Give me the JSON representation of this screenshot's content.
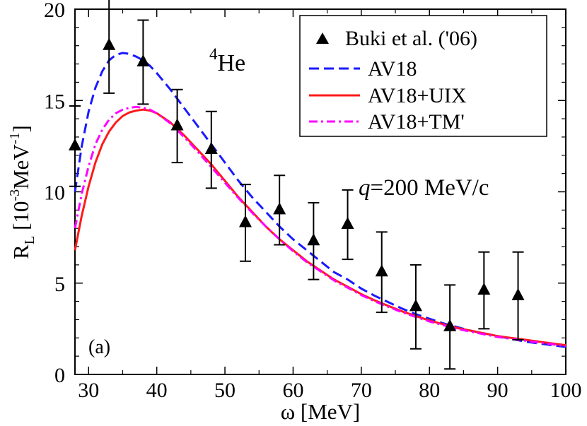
{
  "chart_data": {
    "type": "line",
    "title": "",
    "xlabel": "ω [MeV]",
    "ylabel": "R_L [10^-3 MeV^-1]",
    "ylabel_parts": {
      "main": "R",
      "main_sub": "L",
      "open": "[10",
      "exp1": "-3",
      "mid": "MeV",
      "exp2": "-1",
      "close": "]"
    },
    "xlim": [
      28,
      100
    ],
    "ylim": [
      0,
      20
    ],
    "x_ticks": [
      30,
      40,
      50,
      60,
      70,
      80,
      90,
      100
    ],
    "y_ticks": [
      0,
      5,
      10,
      15,
      20
    ],
    "grid": false,
    "legend_position": "top-right",
    "annotations": {
      "nucleus": {
        "mass": "4",
        "symbol": "He"
      },
      "momentum": {
        "var": "q",
        "rest": "=200 MeV/c"
      },
      "panel": "(a)"
    },
    "data_series": {
      "name": "Buki et al. ('06)",
      "x": [
        28,
        33,
        38,
        43,
        48,
        53,
        58,
        63,
        68,
        73,
        78,
        83,
        88,
        93
      ],
      "y": [
        12.5,
        18.0,
        17.1,
        13.6,
        12.3,
        8.3,
        9.0,
        7.3,
        8.2,
        5.6,
        3.7,
        2.6,
        4.6,
        4.3
      ],
      "err": [
        2.2,
        2.6,
        2.3,
        2.0,
        2.1,
        2.1,
        1.9,
        2.1,
        1.9,
        2.2,
        2.3,
        2.3,
        2.1,
        2.4
      ],
      "color": "#000000"
    },
    "series": [
      {
        "name": "AV18",
        "style": "dashed",
        "color": "#1a1aff",
        "x": [
          28,
          29,
          30,
          31,
          32,
          33,
          34,
          35,
          36,
          37,
          38,
          39,
          40,
          42,
          44,
          46,
          48,
          50,
          52,
          54,
          56,
          58,
          60,
          62,
          64,
          66,
          68,
          70,
          72,
          74,
          76,
          78,
          80,
          82,
          84,
          86,
          88,
          90,
          92,
          94,
          96,
          98,
          100
        ],
        "y": [
          10.0,
          12.5,
          14.4,
          15.7,
          16.6,
          17.2,
          17.5,
          17.6,
          17.55,
          17.4,
          17.2,
          16.9,
          16.5,
          15.6,
          14.6,
          13.6,
          12.6,
          11.6,
          10.6,
          9.7,
          8.9,
          8.1,
          7.4,
          6.8,
          6.2,
          5.6,
          5.2,
          4.7,
          4.3,
          3.95,
          3.6,
          3.3,
          3.05,
          2.8,
          2.6,
          2.4,
          2.25,
          2.1,
          1.95,
          1.8,
          1.7,
          1.6,
          1.5
        ]
      },
      {
        "name": "AV18+UIX",
        "style": "solid",
        "color": "#ff1a1a",
        "x": [
          28,
          29,
          30,
          31,
          32,
          33,
          34,
          35,
          36,
          37,
          38,
          39,
          40,
          42,
          44,
          46,
          48,
          50,
          52,
          54,
          56,
          58,
          60,
          62,
          64,
          66,
          68,
          70,
          72,
          74,
          76,
          78,
          80,
          82,
          84,
          86,
          88,
          90,
          92,
          94,
          96,
          98,
          100
        ],
        "y": [
          6.8,
          8.7,
          10.3,
          11.6,
          12.6,
          13.3,
          13.8,
          14.15,
          14.35,
          14.45,
          14.5,
          14.45,
          14.3,
          13.8,
          13.1,
          12.3,
          11.5,
          10.6,
          9.7,
          8.9,
          8.1,
          7.4,
          6.8,
          6.2,
          5.7,
          5.2,
          4.8,
          4.4,
          4.05,
          3.75,
          3.45,
          3.2,
          2.95,
          2.75,
          2.55,
          2.4,
          2.25,
          2.1,
          2.0,
          1.9,
          1.8,
          1.7,
          1.6
        ]
      },
      {
        "name": "AV18+TM'",
        "style": "dashdot",
        "color": "#ff00ff",
        "x": [
          28,
          29,
          30,
          31,
          32,
          33,
          34,
          35,
          36,
          37,
          38,
          39,
          40,
          42,
          44,
          46,
          48,
          50,
          52,
          54,
          56,
          58,
          60,
          62,
          64,
          66,
          68,
          70,
          72,
          74,
          76,
          78,
          80,
          82,
          84,
          86,
          88,
          90,
          92,
          94,
          96,
          98,
          100
        ],
        "y": [
          8.0,
          9.9,
          11.4,
          12.6,
          13.4,
          13.95,
          14.3,
          14.5,
          14.6,
          14.65,
          14.6,
          14.5,
          14.3,
          13.75,
          13.0,
          12.2,
          11.35,
          10.5,
          9.65,
          8.85,
          8.1,
          7.4,
          6.75,
          6.15,
          5.65,
          5.15,
          4.75,
          4.35,
          4.0,
          3.7,
          3.4,
          3.15,
          2.9,
          2.7,
          2.5,
          2.35,
          2.2,
          2.05,
          1.95,
          1.85,
          1.75,
          1.65,
          1.55
        ]
      }
    ]
  }
}
